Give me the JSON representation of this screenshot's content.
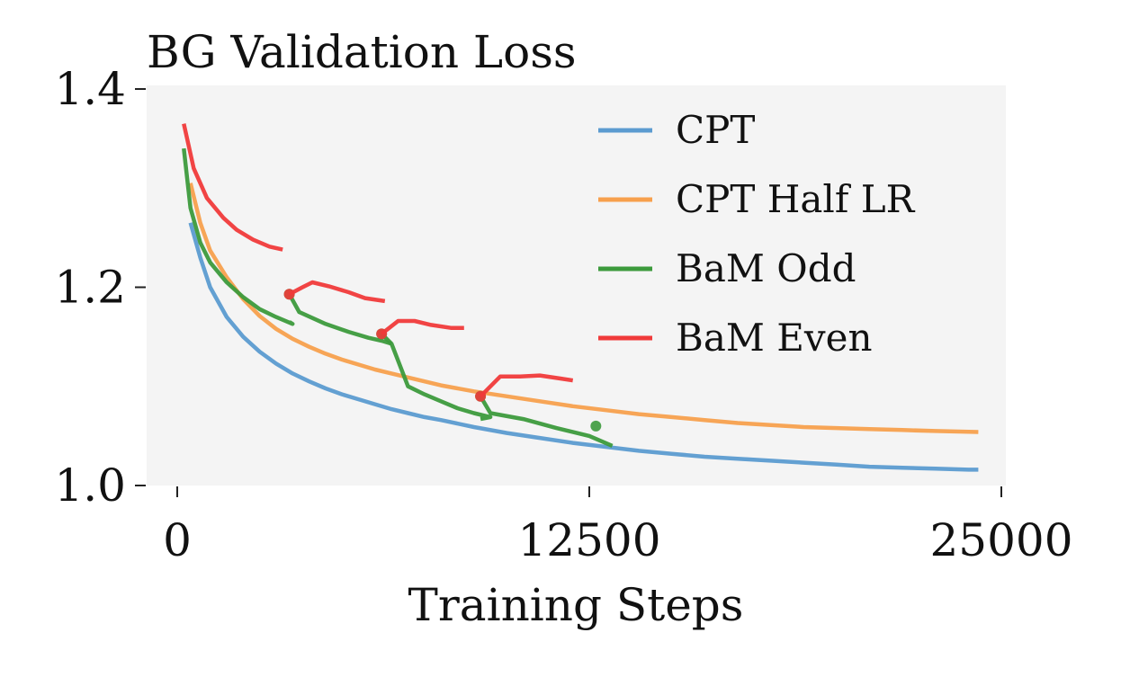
{
  "chart_data": {
    "type": "line",
    "title": "BG Validation Loss",
    "xlabel": "Training Steps",
    "ylabel": "",
    "xlim": [
      -1000,
      25000
    ],
    "ylim": [
      1.0,
      1.4
    ],
    "xticks": [
      0,
      12500,
      25000
    ],
    "xtick_labels": [
      "0",
      "12500",
      "25000"
    ],
    "yticks": [
      1.0,
      1.2,
      1.4
    ],
    "ytick_labels": [
      "1.0",
      "1.2",
      "1.4"
    ],
    "grid": false,
    "legend_position": "top-right",
    "series": [
      {
        "name": "CPT",
        "color": "#5b9bd0",
        "points": [
          [
            400,
            1.265
          ],
          [
            700,
            1.23
          ],
          [
            1000,
            1.2
          ],
          [
            1500,
            1.17
          ],
          [
            2000,
            1.15
          ],
          [
            2500,
            1.135
          ],
          [
            3000,
            1.123
          ],
          [
            3500,
            1.113
          ],
          [
            4000,
            1.105
          ],
          [
            4500,
            1.098
          ],
          [
            5000,
            1.092
          ],
          [
            5500,
            1.087
          ],
          [
            6000,
            1.082
          ],
          [
            6500,
            1.077
          ],
          [
            7000,
            1.073
          ],
          [
            7500,
            1.069
          ],
          [
            8000,
            1.066
          ],
          [
            9000,
            1.059
          ],
          [
            10000,
            1.053
          ],
          [
            11000,
            1.048
          ],
          [
            12000,
            1.043
          ],
          [
            13000,
            1.039
          ],
          [
            14000,
            1.035
          ],
          [
            15000,
            1.032
          ],
          [
            16000,
            1.029
          ],
          [
            17000,
            1.027
          ],
          [
            18000,
            1.025
          ],
          [
            19000,
            1.023
          ],
          [
            20000,
            1.021
          ],
          [
            21000,
            1.019
          ],
          [
            22000,
            1.018
          ],
          [
            23000,
            1.017
          ],
          [
            24000,
            1.016
          ],
          [
            24300,
            1.016
          ]
        ]
      },
      {
        "name": "CPT Half LR",
        "color": "#f7a04d",
        "points": [
          [
            400,
            1.305
          ],
          [
            700,
            1.265
          ],
          [
            1000,
            1.237
          ],
          [
            1500,
            1.21
          ],
          [
            2000,
            1.188
          ],
          [
            2500,
            1.171
          ],
          [
            3000,
            1.158
          ],
          [
            3500,
            1.148
          ],
          [
            4000,
            1.14
          ],
          [
            4500,
            1.133
          ],
          [
            5000,
            1.127
          ],
          [
            5500,
            1.122
          ],
          [
            6000,
            1.117
          ],
          [
            6500,
            1.113
          ],
          [
            7000,
            1.109
          ],
          [
            7500,
            1.105
          ],
          [
            8000,
            1.101
          ],
          [
            9000,
            1.095
          ],
          [
            10000,
            1.09
          ],
          [
            11000,
            1.085
          ],
          [
            12000,
            1.08
          ],
          [
            13000,
            1.076
          ],
          [
            14000,
            1.072
          ],
          [
            15000,
            1.069
          ],
          [
            16000,
            1.066
          ],
          [
            17000,
            1.063
          ],
          [
            18000,
            1.061
          ],
          [
            19000,
            1.059
          ],
          [
            20000,
            1.058
          ],
          [
            21000,
            1.057
          ],
          [
            22000,
            1.056
          ],
          [
            23000,
            1.055
          ],
          [
            24300,
            1.054
          ]
        ]
      },
      {
        "name": "BaM Odd",
        "color": "#3c9a3c",
        "segments": [
          [
            [
              200,
              1.34
            ],
            [
              400,
              1.28
            ],
            [
              700,
              1.245
            ],
            [
              1000,
              1.225
            ],
            [
              1500,
              1.205
            ],
            [
              2000,
              1.19
            ],
            [
              2500,
              1.178
            ],
            [
              3000,
              1.17
            ],
            [
              3500,
              1.163
            ],
            [
              3500,
              1.163
            ],
            [
              3400,
              1.165
            ]
          ],
          [
            [
              3400,
              1.193
            ],
            [
              3700,
              1.175
            ],
            [
              4500,
              1.163
            ],
            [
              5200,
              1.155
            ],
            [
              5800,
              1.149
            ],
            [
              6200,
              1.146
            ],
            [
              6500,
              1.143
            ]
          ],
          [
            [
              6200,
              1.153
            ],
            [
              6500,
              1.143
            ],
            [
              7000,
              1.1
            ],
            [
              7500,
              1.092
            ],
            [
              8000,
              1.085
            ],
            [
              8500,
              1.078
            ],
            [
              9000,
              1.073
            ],
            [
              9500,
              1.069
            ],
            [
              9200,
              1.067
            ]
          ],
          [
            [
              9200,
              1.09
            ],
            [
              9500,
              1.073
            ],
            [
              10500,
              1.067
            ],
            [
              11500,
              1.058
            ],
            [
              12500,
              1.05
            ],
            [
              13200,
              1.04
            ]
          ]
        ],
        "markers": [
          [
            3400,
            1.193
          ],
          [
            6200,
            1.153
          ],
          [
            9200,
            1.09
          ],
          [
            12700,
            1.06
          ]
        ]
      },
      {
        "name": "BaM Even",
        "color": "#f03a3a",
        "segments": [
          [
            [
              200,
              1.365
            ],
            [
              500,
              1.32
            ],
            [
              900,
              1.29
            ],
            [
              1400,
              1.27
            ],
            [
              1800,
              1.258
            ],
            [
              2300,
              1.248
            ],
            [
              2800,
              1.241
            ],
            [
              3200,
              1.238
            ]
          ],
          [
            [
              3400,
              1.193
            ],
            [
              3800,
              1.2
            ],
            [
              4100,
              1.205
            ],
            [
              4600,
              1.201
            ],
            [
              5200,
              1.195
            ],
            [
              5700,
              1.189
            ],
            [
              6300,
              1.186
            ]
          ],
          [
            [
              6200,
              1.153
            ],
            [
              6700,
              1.166
            ],
            [
              7200,
              1.166
            ],
            [
              7700,
              1.162
            ],
            [
              8300,
              1.159
            ],
            [
              8700,
              1.159
            ]
          ],
          [
            [
              9200,
              1.09
            ],
            [
              9800,
              1.11
            ],
            [
              10400,
              1.11
            ],
            [
              11000,
              1.111
            ],
            [
              11600,
              1.108
            ],
            [
              12000,
              1.106
            ]
          ]
        ],
        "markers": [
          [
            3400,
            1.193
          ],
          [
            6200,
            1.153
          ],
          [
            9200,
            1.09
          ]
        ]
      }
    ]
  }
}
